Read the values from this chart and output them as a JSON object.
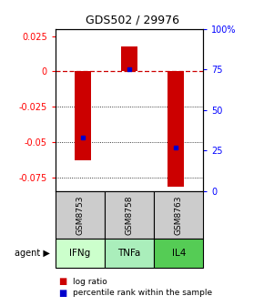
{
  "title": "GDS502 / 29976",
  "samples": [
    "GSM8753",
    "GSM8758",
    "GSM8763"
  ],
  "agents": [
    "IFNg",
    "TNFa",
    "IL4"
  ],
  "log_ratios": [
    -0.063,
    0.018,
    -0.082
  ],
  "percentile_ranks": [
    0.33,
    0.75,
    0.27
  ],
  "ylim_left": [
    -0.085,
    0.03
  ],
  "ylim_right": [
    0.0,
    1.0
  ],
  "yticks_left": [
    0.025,
    0.0,
    -0.025,
    -0.05,
    -0.075
  ],
  "yticks_right": [
    1.0,
    0.75,
    0.5,
    0.25,
    0.0
  ],
  "ytick_labels_left": [
    "0.025",
    "0",
    "-0.025",
    "-0.05",
    "-0.075"
  ],
  "ytick_labels_right": [
    "100%",
    "75",
    "50",
    "25",
    "0"
  ],
  "bar_color": "#cc0000",
  "dot_color": "#0000cc",
  "agent_colors": [
    "#ccffcc",
    "#aaeebb",
    "#55cc55"
  ],
  "sample_bg": "#cccccc",
  "zero_line_color": "#cc0000",
  "bar_width": 0.35
}
